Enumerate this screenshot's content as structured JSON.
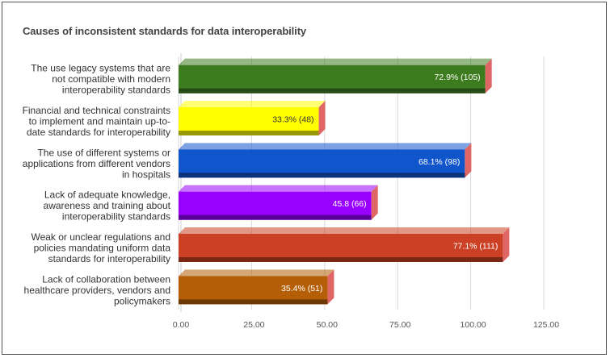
{
  "chart_data": {
    "type": "bar",
    "orientation": "horizontal",
    "style": "3d",
    "title": "Causes of inconsistent standards for data interoperability",
    "xlabel": "",
    "ylabel": "",
    "xlim": [
      0,
      125
    ],
    "ticks": [
      "0.00",
      "25.00",
      "50.00",
      "75.00",
      "100.00",
      "125.00"
    ],
    "tick_values": [
      0,
      25,
      50,
      75,
      100,
      125
    ],
    "grid": true,
    "legend": "none",
    "categories": [
      [
        "The use legacy systems that are",
        "not compatible with modern",
        "interoperability standards"
      ],
      [
        "Financial and technical constraints",
        "to implement and maintain up-to-",
        "date standards for interoperability"
      ],
      [
        "The use of different systems or",
        "applications from different vendors",
        "in hospitals"
      ],
      [
        "Lack of adequate knowledge,",
        "awareness and training about",
        "interoperability standards"
      ],
      [
        "Weak or unclear regulations and",
        "policies mandating uniform data",
        "standards for interoperability"
      ],
      [
        "Lack of collaboration between",
        "healthcare providers, vendors and",
        "policymakers"
      ]
    ],
    "values": [
      105,
      48,
      98,
      66,
      111,
      51
    ],
    "data_labels": [
      "72.9% (105)",
      "33.3% (48)",
      "68.1% (98)",
      "45.8 (66)",
      "77.1% (111)",
      "35.4% (51)"
    ],
    "colors": [
      "#3d7b1f",
      "#ffff00",
      "#1155cc",
      "#9900ff",
      "#cc4125",
      "#b45f06"
    ],
    "label_colors": [
      "#ffffff",
      "#333333",
      "#ffffff",
      "#ffffff",
      "#ffffff",
      "#ffffff"
    ],
    "side_color": "#e06666"
  }
}
